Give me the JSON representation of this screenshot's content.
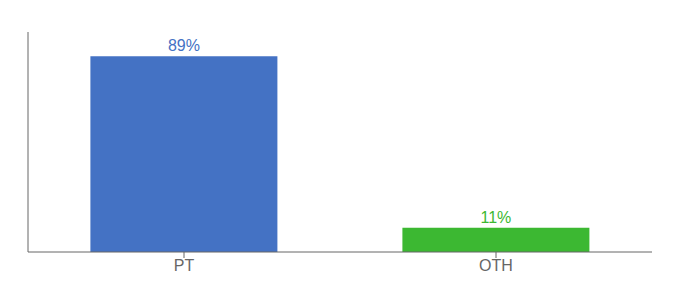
{
  "chart_data": {
    "type": "bar",
    "categories": [
      "PT",
      "OTH"
    ],
    "values": [
      89,
      11
    ],
    "value_labels": [
      "89%",
      "11%"
    ],
    "colors": [
      "#4472c4",
      "#3cb832"
    ],
    "ylim": [
      0,
      100
    ],
    "data_labels": true,
    "tick_labels": "x",
    "grid": false
  }
}
